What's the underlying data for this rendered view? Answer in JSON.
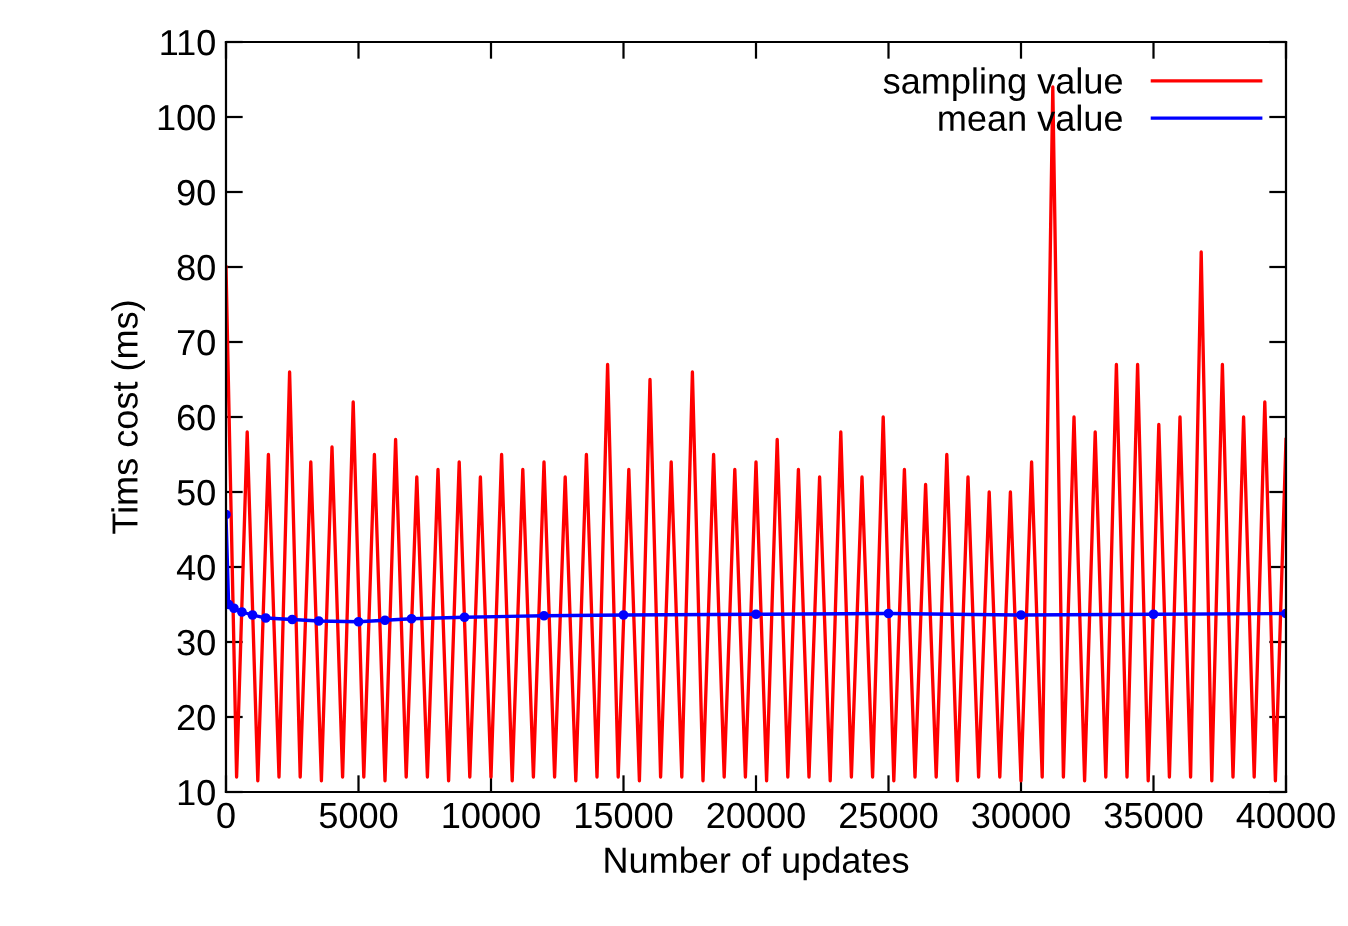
{
  "chart_data": {
    "type": "line",
    "xlabel": "Number of updates",
    "ylabel": "Tims cost (ms)",
    "xlim": [
      0,
      40000
    ],
    "xticks": [
      0,
      5000,
      10000,
      15000,
      20000,
      25000,
      30000,
      35000,
      40000
    ],
    "ylim": [
      10,
      110
    ],
    "yticks": [
      10,
      20,
      30,
      40,
      50,
      60,
      70,
      80,
      90,
      100,
      110
    ],
    "grid": false,
    "legend": "top right",
    "series": [
      {
        "name": "sampling value",
        "color": "#ff0000",
        "line_style": "solid",
        "marker": "none",
        "x": [
          0,
          400,
          800,
          1200,
          1600,
          2000,
          2400,
          2800,
          3200,
          3600,
          4000,
          4400,
          4800,
          5200,
          5600,
          6000,
          6400,
          6800,
          7200,
          7600,
          8000,
          8400,
          8800,
          9200,
          9600,
          10000,
          10400,
          10800,
          11200,
          11600,
          12000,
          12400,
          12800,
          13200,
          13600,
          14000,
          14400,
          14800,
          15200,
          15600,
          16000,
          16400,
          16800,
          17200,
          17600,
          18000,
          18400,
          18800,
          19200,
          19600,
          20000,
          20400,
          20800,
          21200,
          21600,
          22000,
          22400,
          22800,
          23200,
          23600,
          24000,
          24400,
          24800,
          25200,
          25600,
          26000,
          26400,
          26800,
          27200,
          27600,
          28000,
          28400,
          28800,
          29200,
          29600,
          30000,
          30400,
          30800,
          31200,
          31600,
          32000,
          32400,
          32800,
          33200,
          33600,
          34000,
          34400,
          34800,
          35200,
          35600,
          36000,
          36400,
          36800,
          37200,
          37600,
          38000,
          38400,
          38800,
          39200,
          39600,
          40000
        ],
        "values": [
          80,
          12,
          58,
          11.5,
          55,
          12,
          66,
          12,
          54,
          11.5,
          56,
          12,
          62,
          12,
          55,
          11.5,
          57,
          12,
          52,
          12,
          53,
          11.5,
          54,
          12,
          52,
          12,
          55,
          11.5,
          53,
          12,
          54,
          12,
          52,
          11.5,
          55,
          12,
          67,
          12,
          53,
          11.5,
          65,
          12,
          54,
          12,
          66,
          11.5,
          55,
          12,
          53,
          12,
          54,
          11.5,
          57,
          12,
          53,
          12,
          52,
          11.5,
          58,
          12,
          52,
          12,
          60,
          11.5,
          53,
          12,
          51,
          12,
          55,
          11.5,
          52,
          12,
          50,
          12,
          50,
          11.5,
          54,
          12,
          104,
          12,
          60,
          11.5,
          58,
          12,
          67,
          12,
          67,
          11.5,
          59,
          12,
          60,
          12,
          82,
          11.5,
          67,
          12,
          60,
          12,
          62,
          11.5,
          57
        ]
      },
      {
        "name": "mean value",
        "color": "#0000ff",
        "line_style": "solid",
        "marker": "circle",
        "x": [
          0,
          100,
          300,
          600,
          1000,
          1500,
          2500,
          3500,
          5000,
          6000,
          7000,
          9000,
          12000,
          15000,
          20000,
          25000,
          30000,
          35000,
          40000
        ],
        "values": [
          47,
          35,
          34.5,
          34,
          33.6,
          33.2,
          33,
          32.8,
          32.7,
          32.9,
          33.1,
          33.3,
          33.5,
          33.6,
          33.7,
          33.8,
          33.6,
          33.7,
          33.8
        ]
      }
    ]
  }
}
